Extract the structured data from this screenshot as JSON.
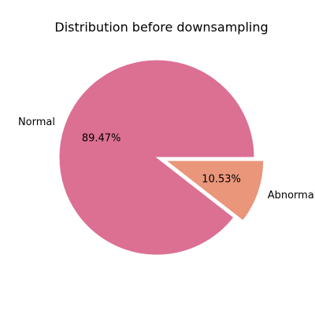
{
  "chart_data": {
    "type": "pie",
    "title": "Distribution before downsampling",
    "categories": [
      "Normal",
      "Abnormal"
    ],
    "values": [
      89.47,
      10.53
    ],
    "value_labels": [
      "89.47%",
      "10.53%"
    ],
    "colors": [
      "#db7093",
      "#e9967a"
    ],
    "explode": [
      0,
      0.1
    ],
    "start_angle": 0,
    "direction": "counterclockwise"
  }
}
